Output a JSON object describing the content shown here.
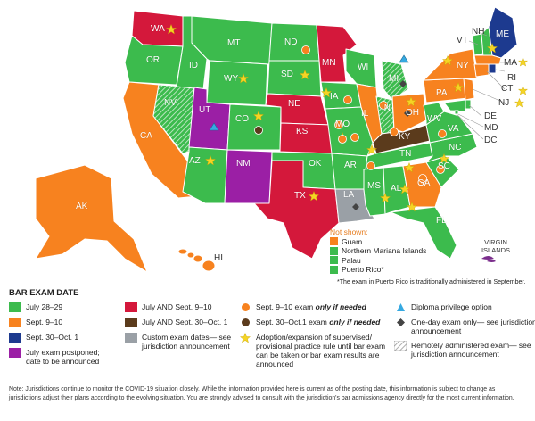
{
  "colors": {
    "july": "#3cbb4d",
    "sept": "#f7821f",
    "sept30": "#1d3a8f",
    "postponed": "#9b1fa5",
    "julysept": "#d4183b",
    "julysept30": "#5b3b1c",
    "custom": "#9aa0a6",
    "dot_orange": "#f7821f",
    "dot_brown": "#5b3b1c",
    "star": "#f5d425",
    "tri": "#36a9e1",
    "diamond": "#444"
  },
  "states": [
    {
      "abbr": "WA",
      "cat": "julysept"
    },
    {
      "abbr": "OR",
      "cat": "july"
    },
    {
      "abbr": "CA",
      "cat": "sept"
    },
    {
      "abbr": "ID",
      "cat": "july"
    },
    {
      "abbr": "NV",
      "cat": "july"
    },
    {
      "abbr": "MT",
      "cat": "july"
    },
    {
      "abbr": "UT",
      "cat": "postponed"
    },
    {
      "abbr": "AZ",
      "cat": "july"
    },
    {
      "abbr": "WY",
      "cat": "july"
    },
    {
      "abbr": "CO",
      "cat": "july"
    },
    {
      "abbr": "NM",
      "cat": "postponed"
    },
    {
      "abbr": "ND",
      "cat": "july"
    },
    {
      "abbr": "SD",
      "cat": "july"
    },
    {
      "abbr": "NE",
      "cat": "julysept"
    },
    {
      "abbr": "KS",
      "cat": "julysept"
    },
    {
      "abbr": "OK",
      "cat": "july"
    },
    {
      "abbr": "TX",
      "cat": "julysept"
    },
    {
      "abbr": "MN",
      "cat": "julysept"
    },
    {
      "abbr": "IA",
      "cat": "july"
    },
    {
      "abbr": "MO",
      "cat": "july"
    },
    {
      "abbr": "AR",
      "cat": "july"
    },
    {
      "abbr": "LA",
      "cat": "custom"
    },
    {
      "abbr": "WI",
      "cat": "july"
    },
    {
      "abbr": "IL",
      "cat": "sept"
    },
    {
      "abbr": "MI",
      "cat": "july"
    },
    {
      "abbr": "IN",
      "cat": "july"
    },
    {
      "abbr": "OH",
      "cat": "sept"
    },
    {
      "abbr": "KY",
      "cat": "julysept30"
    },
    {
      "abbr": "TN",
      "cat": "july"
    },
    {
      "abbr": "MS",
      "cat": "july"
    },
    {
      "abbr": "AL",
      "cat": "july"
    },
    {
      "abbr": "GA",
      "cat": "sept"
    },
    {
      "abbr": "FL",
      "cat": "july"
    },
    {
      "abbr": "SC",
      "cat": "july"
    },
    {
      "abbr": "NC",
      "cat": "july"
    },
    {
      "abbr": "VA",
      "cat": "july"
    },
    {
      "abbr": "WV",
      "cat": "july"
    },
    {
      "abbr": "PA",
      "cat": "sept"
    },
    {
      "abbr": "NY",
      "cat": "sept"
    },
    {
      "abbr": "VT",
      "cat": "july"
    },
    {
      "abbr": "NH",
      "cat": "july"
    },
    {
      "abbr": "ME",
      "cat": "sept30"
    },
    {
      "abbr": "MA",
      "cat": "sept"
    },
    {
      "abbr": "RI",
      "cat": "sept30"
    },
    {
      "abbr": "CT",
      "cat": "sept"
    },
    {
      "abbr": "NJ",
      "cat": "sept"
    },
    {
      "abbr": "DE",
      "cat": "july"
    },
    {
      "abbr": "MD",
      "cat": "july"
    },
    {
      "abbr": "DC",
      "cat": "july"
    },
    {
      "abbr": "AK",
      "cat": "sept"
    },
    {
      "abbr": "HI",
      "cat": "sept"
    }
  ],
  "not_shown": {
    "title": "Not shown:",
    "items": [
      {
        "label": "Guam",
        "color": "#f7821f"
      },
      {
        "label": "Northern Mariana Islands",
        "color": "#3cbb4d"
      },
      {
        "label": "Palau",
        "color": "#3cbb4d"
      },
      {
        "label": "Puerto Rico*",
        "color": "#3cbb4d"
      }
    ],
    "footnote": "*The exam in Puerto Rico is traditionally administered in September."
  },
  "virgin_islands": {
    "label": "VIRGIN ISLANDS"
  },
  "legend": {
    "title": "BAR EXAM DATE",
    "col1": [
      {
        "label": "July 28–29",
        "color": "#3cbb4d"
      },
      {
        "label": "Sept. 9–10",
        "color": "#f7821f"
      },
      {
        "label": "Sept. 30–Oct. 1",
        "color": "#1d3a8f"
      },
      {
        "label": "July exam postponed; date to be announced",
        "color": "#9b1fa5"
      }
    ],
    "col2": [
      {
        "label": "July AND Sept. 9–10",
        "color": "#d4183b"
      },
      {
        "label": "July AND Sept. 30–Oct. 1",
        "color": "#5b3b1c"
      },
      {
        "label": "Custom exam dates— see jurisdiction announcement",
        "color": "#9aa0a6"
      }
    ],
    "col3": [
      {
        "label_pre": "Sept. 9–10 exam ",
        "label_em": "only if needed",
        "icon": "orange-dot"
      },
      {
        "label_pre": "Sept. 30–Oct.1 exam ",
        "label_em": "only if needed",
        "icon": "brown-dot"
      },
      {
        "label_pre": "Adoption/expansion of supervised/ provisional practice rule until bar exam can be taken or bar exam results are announced",
        "label_em": "",
        "icon": "star"
      }
    ],
    "col4": [
      {
        "label": "Diploma privilege option",
        "icon": "triangle"
      },
      {
        "label": "One-day exam only— see jurisdiction announcement",
        "icon": "diamond"
      },
      {
        "label": "Remotely administered exam— see jurisdiction announcement",
        "icon": "hatch"
      }
    ]
  },
  "note": "Note: Jurisdictions continue to monitor the COVID-19 situation closely. While the information provided here is current as of the posting date, this information is subject to change as jurisdictions adjust their plans according to the evolving situation. You are strongly advised to consult with the jurisdiction's bar admissions agency directly for the most current information."
}
